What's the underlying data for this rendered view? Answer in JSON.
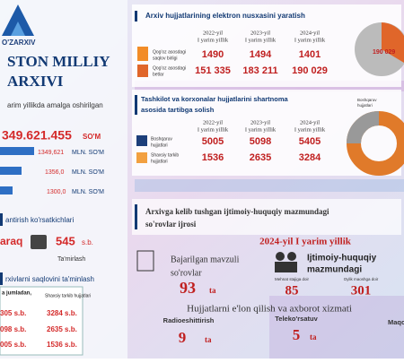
{
  "left": {
    "logo": "O'ZARXIV",
    "title": [
      "STON MILLIY",
      "ARXIVI"
    ],
    "intro": "arim yillikda amalga oshirilgan",
    "total": {
      "amount": "349.621.455",
      "unit": "SO'M"
    },
    "bars": [
      {
        "amount": "1349,621",
        "unit": "MLN. SO'M"
      },
      {
        "amount": "1356,0",
        "unit": "MLN. SO'M"
      },
      {
        "amount": "1300,0",
        "unit": "MLN. SO'M"
      }
    ],
    "repair_heading": "antirish ko'rsatkichlari",
    "repair_left": "araq",
    "repair_value": "545",
    "repair_unit": "s.b.",
    "repair_label": "Ta'mirlash",
    "storage_heading": "rxivlarni saqlovini ta'minlash",
    "storage_table": {
      "header": [
        "a jumladan,",
        "Shaxsiy tarkib hujjatlari"
      ],
      "rows": [
        [
          "305 s.b.",
          "3284 s.b."
        ],
        [
          "098 s.b.",
          "2635 s.b."
        ],
        [
          "005 s.b.",
          "1536 s.b."
        ]
      ]
    }
  },
  "digitization": {
    "title": "Arxiv hujjatlarining elektron nusxasini yaratish",
    "columns": [
      [
        "2022-yil",
        "I yarim yillik"
      ],
      [
        "2023-yil",
        "I yarim yillik"
      ],
      [
        "2024-yil",
        "I yarim yillik"
      ]
    ],
    "rows": [
      {
        "label": [
          "Qog'oz asosdagi",
          "saqlov birligi"
        ],
        "values": [
          "1490",
          "1494",
          "1401"
        ]
      },
      {
        "label": [
          "Qog'oz asosdagi",
          "betlar"
        ],
        "values": [
          "151 335",
          "183 211",
          "190 029"
        ]
      }
    ],
    "pie_label": "190 029"
  },
  "contracts": {
    "title": [
      "Tashkilot va korxonalar hujjatlarini shartnoma",
      "asosida tartibga solish"
    ],
    "columns": [
      [
        "2022-yil",
        "I yarim yillik"
      ],
      [
        "2023-yil",
        "I yarim yillik"
      ],
      [
        "2024-yil",
        "I yarim yillik"
      ]
    ],
    "rows": [
      {
        "label": [
          "Boshqaruv",
          "hujjatlari"
        ],
        "values": [
          "5005",
          "5098",
          "5405"
        ]
      },
      {
        "label": [
          "Shaxsiy tarkib",
          "hujjatlari"
        ],
        "values": [
          "1536",
          "2635",
          "3284"
        ]
      }
    ],
    "donut_label": [
      "Boshqaruv",
      "hujjatlari"
    ]
  },
  "requests": {
    "title": [
      "Arxivga kelib tushgan ijtimoiy-huquqiy mazmundagi",
      "so'rovlar ijrosi"
    ],
    "period": "2024-yil I yarim yillik",
    "thematic": {
      "label": [
        "Bajarilgan mavzuli",
        "so'rovlar"
      ],
      "value": "93",
      "unit": "ta"
    },
    "social": {
      "label": [
        "Ijtimoiy-huquqiy",
        "mazmundagi"
      ],
      "items": [
        {
          "label": "Mehnat stajiga doir",
          "value": "85"
        },
        {
          "label": "Oylik maoshga doir",
          "value": "301"
        }
      ]
    },
    "media_title": "Hujjatlarni e'lon qilish va axborot xizmati",
    "media": [
      {
        "label": "Radioeshittirish",
        "value": "9",
        "unit": "ta"
      },
      {
        "label": "Teleko'rsatuv",
        "value": "5",
        "unit": "ta"
      },
      {
        "label": "Maqol"
      }
    ]
  }
}
